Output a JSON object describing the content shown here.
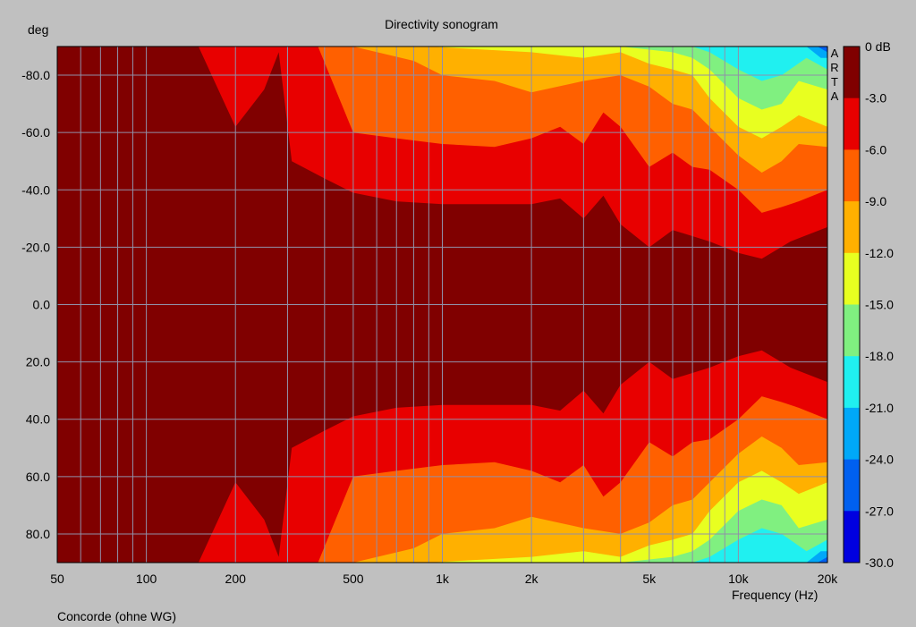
{
  "chart_data": {
    "type": "heatmap",
    "title": "Directivity sonogram",
    "ylabel": "deg",
    "xlabel": "Frequency (Hz)",
    "footer": "Concorde (ohne WG)",
    "watermark": [
      "A",
      "R",
      "T",
      "A"
    ],
    "x_scale": "log",
    "xlim": [
      50,
      20000
    ],
    "ylim": [
      -90,
      90
    ],
    "y_inverted": true,
    "x_ticks": [
      {
        "value": 50,
        "label": "50"
      },
      {
        "value": 100,
        "label": "100"
      },
      {
        "value": 200,
        "label": "200"
      },
      {
        "value": 500,
        "label": "500"
      },
      {
        "value": 1000,
        "label": "1k"
      },
      {
        "value": 2000,
        "label": "2k"
      },
      {
        "value": 5000,
        "label": "5k"
      },
      {
        "value": 10000,
        "label": "10k"
      },
      {
        "value": 20000,
        "label": "20k"
      }
    ],
    "x_minor_grid": [
      60,
      70,
      80,
      90,
      300,
      400,
      600,
      700,
      800,
      900,
      3000,
      4000,
      6000,
      7000,
      8000,
      9000
    ],
    "y_ticks": [
      {
        "value": -80,
        "label": "-80.0"
      },
      {
        "value": -60,
        "label": "-60.0"
      },
      {
        "value": -40,
        "label": "-40.0"
      },
      {
        "value": -20,
        "label": "-20.0"
      },
      {
        "value": 0,
        "label": "0.0"
      },
      {
        "value": 20,
        "label": "20.0"
      },
      {
        "value": 40,
        "label": "40.0"
      },
      {
        "value": 60,
        "label": "60.0"
      },
      {
        "value": 80,
        "label": "80.0"
      }
    ],
    "colorbar": {
      "labels": [
        "0 dB",
        "-3.0",
        "-6.0",
        "-9.0",
        "-12.0",
        "-15.0",
        "-18.0",
        "-21.0",
        "-24.0",
        "-27.0",
        "-30.0"
      ],
      "colors": [
        "#800000",
        "#e80000",
        "#ff6000",
        "#ffb000",
        "#e8ff20",
        "#80f080",
        "#20f0f0",
        "#00a8f8",
        "#0060f0",
        "#0000e0"
      ]
    },
    "contours": [
      {
        "level": "-3.0",
        "color": "#e80000",
        "boundary": [
          [
            150,
            90
          ],
          [
            200,
            62
          ],
          [
            250,
            75
          ],
          [
            280,
            88
          ],
          [
            310,
            50
          ],
          [
            400,
            44
          ],
          [
            500,
            39
          ],
          [
            700,
            36
          ],
          [
            1000,
            35
          ],
          [
            1500,
            35
          ],
          [
            2000,
            35
          ],
          [
            2500,
            37
          ],
          [
            3000,
            30
          ],
          [
            3500,
            38
          ],
          [
            4000,
            28
          ],
          [
            5000,
            20
          ],
          [
            6000,
            26
          ],
          [
            8000,
            22
          ],
          [
            10000,
            18
          ],
          [
            12000,
            16
          ],
          [
            15000,
            22
          ],
          [
            20000,
            27
          ]
        ]
      },
      {
        "level": "-6.0",
        "color": "#ff6000",
        "boundary": [
          [
            380,
            90
          ],
          [
            500,
            60
          ],
          [
            700,
            58
          ],
          [
            1000,
            56
          ],
          [
            1500,
            55
          ],
          [
            2000,
            58
          ],
          [
            2500,
            62
          ],
          [
            3000,
            56
          ],
          [
            3500,
            67
          ],
          [
            4000,
            62
          ],
          [
            5000,
            48
          ],
          [
            6000,
            53
          ],
          [
            7000,
            48
          ],
          [
            8000,
            47
          ],
          [
            10000,
            40
          ],
          [
            12000,
            32
          ],
          [
            14000,
            34
          ],
          [
            16000,
            36
          ],
          [
            20000,
            40
          ]
        ]
      },
      {
        "level": "-9.0",
        "color": "#ffb000",
        "boundary": [
          [
            500,
            90
          ],
          [
            800,
            85
          ],
          [
            1000,
            80
          ],
          [
            1500,
            78
          ],
          [
            2000,
            74
          ],
          [
            3000,
            78
          ],
          [
            4000,
            80
          ],
          [
            5000,
            76
          ],
          [
            6000,
            70
          ],
          [
            7000,
            68
          ],
          [
            8000,
            62
          ],
          [
            10000,
            52
          ],
          [
            12000,
            46
          ],
          [
            14000,
            50
          ],
          [
            16000,
            56
          ],
          [
            20000,
            55
          ]
        ]
      },
      {
        "level": "-12.0",
        "color": "#e8ff20",
        "boundary": [
          [
            900,
            90
          ],
          [
            2000,
            88
          ],
          [
            3000,
            86
          ],
          [
            4000,
            88
          ],
          [
            5000,
            84
          ],
          [
            6000,
            82
          ],
          [
            7000,
            80
          ],
          [
            8000,
            72
          ],
          [
            10000,
            62
          ],
          [
            12000,
            58
          ],
          [
            14000,
            62
          ],
          [
            16000,
            66
          ],
          [
            20000,
            62
          ]
        ]
      },
      {
        "level": "-15.0",
        "color": "#80f080",
        "boundary": [
          [
            4000,
            90
          ],
          [
            6000,
            88
          ],
          [
            7000,
            86
          ],
          [
            8000,
            82
          ],
          [
            10000,
            72
          ],
          [
            12000,
            68
          ],
          [
            14000,
            70
          ],
          [
            16000,
            78
          ],
          [
            20000,
            75
          ]
        ]
      },
      {
        "level": "-18.0",
        "color": "#20f0f0",
        "boundary": [
          [
            7000,
            90
          ],
          [
            8000,
            88
          ],
          [
            10000,
            82
          ],
          [
            12000,
            78
          ],
          [
            14000,
            80
          ],
          [
            17000,
            86
          ],
          [
            20000,
            82
          ]
        ]
      },
      {
        "level": "-21.0",
        "color": "#00a8f8",
        "boundary": [
          [
            17000,
            90
          ],
          [
            19000,
            86
          ],
          [
            20000,
            86
          ]
        ]
      },
      {
        "level": "-24.0",
        "color": "#0060f0",
        "boundary": [
          [
            18500,
            90
          ],
          [
            20000,
            88
          ]
        ]
      }
    ]
  }
}
